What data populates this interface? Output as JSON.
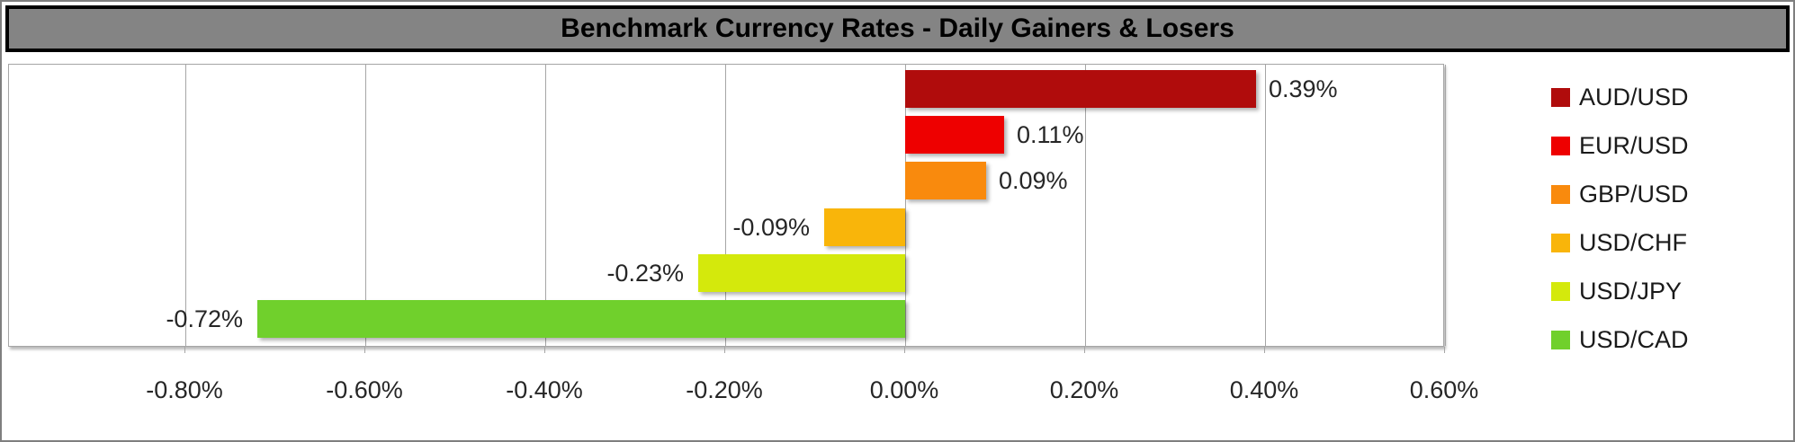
{
  "title": "Benchmark Currency Rates - Daily Gainers & Losers",
  "chart_data": {
    "type": "bar",
    "orientation": "horizontal",
    "title": "Benchmark Currency Rates - Daily Gainers & Losers",
    "categories": [
      "AUD/USD",
      "EUR/USD",
      "GBP/USD",
      "USD/CHF",
      "USD/JPY",
      "USD/CAD"
    ],
    "values": [
      0.39,
      0.11,
      0.09,
      -0.09,
      -0.23,
      -0.72
    ],
    "value_labels": [
      "0.39%",
      "0.11%",
      "0.09%",
      "-0.09%",
      "-0.23%",
      "-0.72%"
    ],
    "colors": [
      "#B00C0C",
      "#EE0000",
      "#F98A0D",
      "#F9B50A",
      "#D4E90C",
      "#70D02C"
    ],
    "x_axis": {
      "tick_values": [
        -0.8,
        -0.6,
        -0.4,
        -0.2,
        0.0,
        0.2,
        0.4,
        0.6
      ],
      "tick_labels": [
        "-0.80%",
        "-0.60%",
        "-0.40%",
        "-0.20%",
        "0.00%",
        "0.20%",
        "0.40%",
        "0.60%"
      ],
      "min": -0.996,
      "max": 0.6,
      "grid": true
    },
    "legend_position": "right",
    "legend_entries": [
      "AUD/USD",
      "EUR/USD",
      "GBP/USD",
      "USD/CHF",
      "USD/JPY",
      "USD/CAD"
    ]
  },
  "style_colors": {
    "title_bar_bg": "#848484",
    "title_bar_border": "#000000",
    "grid": "#A6A6A6",
    "label_text": "#262626",
    "outer_border": "#7F7F7F",
    "plot_bg": "#FFFFFF"
  }
}
